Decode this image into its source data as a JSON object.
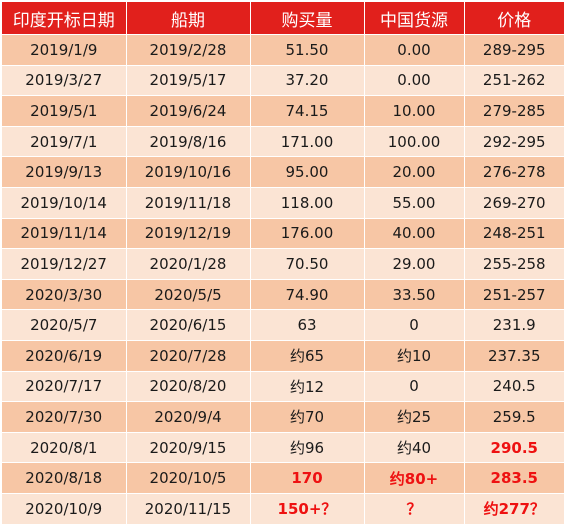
{
  "headers": [
    "印度开标日期",
    "船期",
    "购买量",
    "中国货源",
    "价格"
  ],
  "rows": [
    {
      "cells": [
        "2019/1/9",
        "2019/2/28",
        "51.50",
        "0.00",
        "289-295"
      ],
      "red": [
        false,
        false,
        false,
        false,
        false
      ]
    },
    {
      "cells": [
        "2019/3/27",
        "2019/5/17",
        "37.20",
        "0.00",
        "251-262"
      ],
      "red": [
        false,
        false,
        false,
        false,
        false
      ]
    },
    {
      "cells": [
        "2019/5/1",
        "2019/6/24",
        "74.15",
        "10.00",
        "279-285"
      ],
      "red": [
        false,
        false,
        false,
        false,
        false
      ]
    },
    {
      "cells": [
        "2019/7/1",
        "2019/8/16",
        "171.00",
        "100.00",
        "292-295"
      ],
      "red": [
        false,
        false,
        false,
        false,
        false
      ]
    },
    {
      "cells": [
        "2019/9/13",
        "2019/10/16",
        "95.00",
        "20.00",
        "276-278"
      ],
      "red": [
        false,
        false,
        false,
        false,
        false
      ]
    },
    {
      "cells": [
        "2019/10/14",
        "2019/11/18",
        "118.00",
        "55.00",
        "269-270"
      ],
      "red": [
        false,
        false,
        false,
        false,
        false
      ]
    },
    {
      "cells": [
        "2019/11/14",
        "2019/12/19",
        "176.00",
        "40.00",
        "248-251"
      ],
      "red": [
        false,
        false,
        false,
        false,
        false
      ]
    },
    {
      "cells": [
        "2019/12/27",
        "2020/1/28",
        "70.50",
        "29.00",
        "255-258"
      ],
      "red": [
        false,
        false,
        false,
        false,
        false
      ]
    },
    {
      "cells": [
        "2020/3/30",
        "2020/5/5",
        "74.90",
        "33.50",
        "251-257"
      ],
      "red": [
        false,
        false,
        false,
        false,
        false
      ]
    },
    {
      "cells": [
        "2020/5/7",
        "2020/6/15",
        "63",
        "0",
        "231.9"
      ],
      "red": [
        false,
        false,
        false,
        false,
        false
      ]
    },
    {
      "cells": [
        "2020/6/19",
        "2020/7/28",
        "约65",
        "约10",
        "237.35"
      ],
      "red": [
        false,
        false,
        false,
        false,
        false
      ]
    },
    {
      "cells": [
        "2020/7/17",
        "2020/8/20",
        "约12",
        "0",
        "240.5"
      ],
      "red": [
        false,
        false,
        false,
        false,
        false
      ]
    },
    {
      "cells": [
        "2020/7/30",
        "2020/9/4",
        "约70",
        "约25",
        "259.5"
      ],
      "red": [
        false,
        false,
        false,
        false,
        false
      ]
    },
    {
      "cells": [
        "2020/8/1",
        "2020/9/15",
        "约96",
        "约40",
        "290.5"
      ],
      "red": [
        false,
        false,
        false,
        false,
        true
      ]
    },
    {
      "cells": [
        "2020/8/18",
        "2020/10/5",
        "170",
        "约80+",
        "283.5"
      ],
      "red": [
        false,
        false,
        true,
        true,
        true
      ]
    },
    {
      "cells": [
        "2020/10/9",
        "2020/11/15",
        "150+？",
        "？",
        "约277？"
      ],
      "red": [
        false,
        false,
        true,
        true,
        true
      ]
    }
  ],
  "colors": {
    "header_bg": "#e1201c",
    "header_text": "#ffffff",
    "row_dark": "#f7c6a5",
    "row_light": "#fbe4d4",
    "highlight_text": "#ee1111"
  }
}
